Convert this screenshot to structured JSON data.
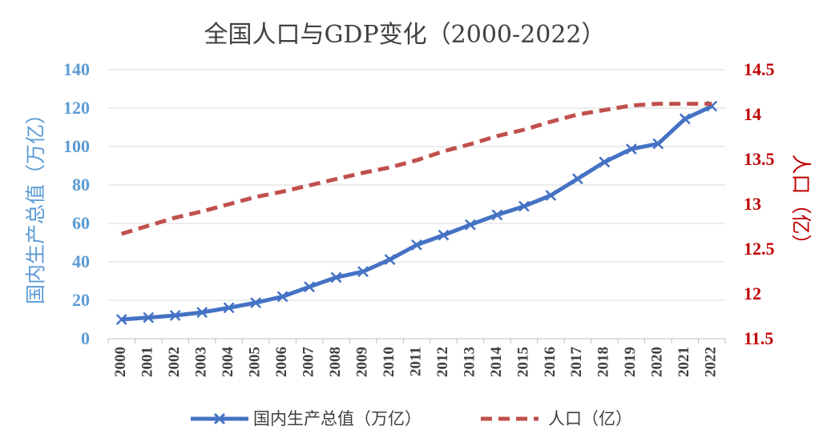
{
  "chart_data": {
    "type": "line",
    "title": "全国人口与GDP变化（2000-2022）",
    "x": [
      "2000",
      "2001",
      "2002",
      "2003",
      "2004",
      "2005",
      "2006",
      "2007",
      "2008",
      "2009",
      "2010",
      "2011",
      "2012",
      "2013",
      "2014",
      "2015",
      "2016",
      "2017",
      "2018",
      "2019",
      "2020",
      "2021",
      "2022"
    ],
    "y_left": {
      "label": "国内生产总值（万亿）",
      "range": [
        0,
        140
      ],
      "ticks": [
        0,
        20,
        40,
        60,
        80,
        100,
        120,
        140
      ],
      "tick_labels": [
        "0",
        "20",
        "40",
        "60",
        "80",
        "100",
        "120",
        "140"
      ]
    },
    "y_right": {
      "label": "人口（亿）",
      "range": [
        11.5,
        14.5
      ],
      "ticks": [
        11.5,
        12,
        12.5,
        13,
        13.5,
        14,
        14.5
      ],
      "tick_labels": [
        "11.5",
        "12",
        "12.5",
        "13",
        "13.5",
        "14",
        "14.5"
      ]
    },
    "series": [
      {
        "name": "国内生产总值（万亿）",
        "axis": "left",
        "style": "solid",
        "marker": "x",
        "color": "#4472c4",
        "values": [
          10.0,
          11.0,
          12.1,
          13.7,
          16.1,
          18.7,
          21.9,
          27.0,
          31.9,
          34.9,
          41.2,
          48.8,
          53.9,
          59.3,
          64.4,
          68.9,
          74.6,
          83.2,
          91.9,
          98.7,
          101.4,
          114.4,
          121.0
        ]
      },
      {
        "name": "人口（亿）",
        "axis": "right",
        "style": "dashed",
        "marker": "none",
        "color": "#c0504d",
        "values": [
          12.67,
          12.76,
          12.85,
          12.92,
          13.0,
          13.08,
          13.14,
          13.21,
          13.28,
          13.35,
          13.41,
          13.49,
          13.59,
          13.67,
          13.76,
          13.83,
          13.92,
          14.0,
          14.05,
          14.1,
          14.12,
          14.12,
          14.12
        ]
      }
    ],
    "grid": "horizontal",
    "legend_position": "bottom"
  }
}
